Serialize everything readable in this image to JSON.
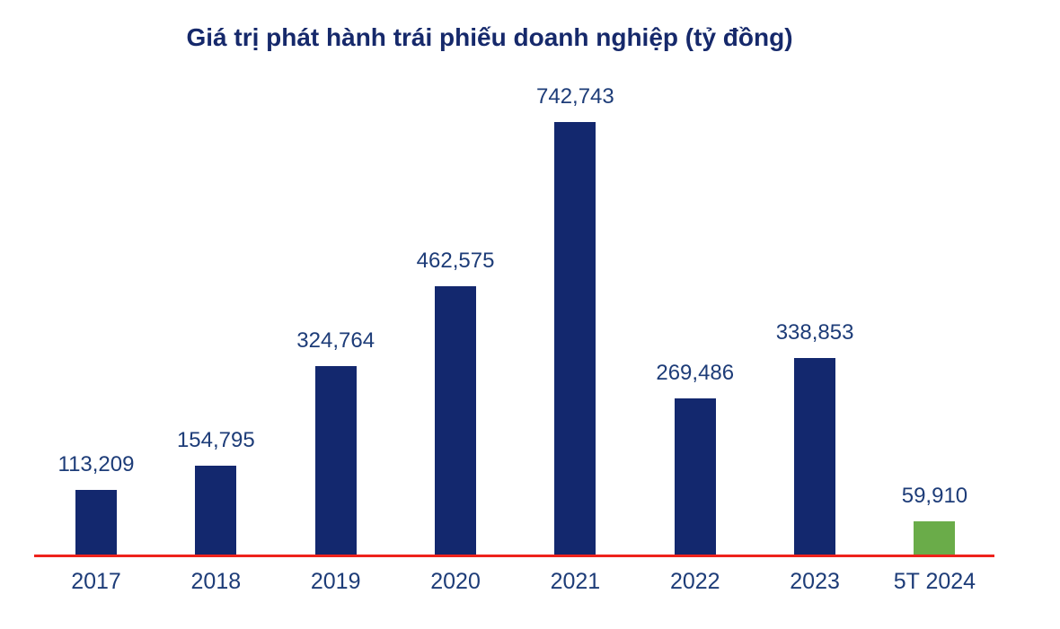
{
  "chart_data": {
    "type": "bar",
    "title": "Giá trị phát hành trái phiếu doanh nghiệp (tỷ đồng)",
    "xlabel": "",
    "ylabel": "",
    "categories": [
      "2017",
      "2018",
      "2019",
      "2020",
      "2021",
      "2022",
      "2023",
      "5T 2024"
    ],
    "values": [
      113209,
      154795,
      324764,
      462575,
      742743,
      269486,
      338853,
      59910
    ],
    "value_labels": [
      "113,209",
      "154,795",
      "324,764",
      "462,575",
      "742,743",
      "269,486",
      "338,853",
      "59,910"
    ],
    "highlight_index": 7,
    "legend": [],
    "grid": "off",
    "ylim": [
      0,
      760000
    ],
    "colors": {
      "bar": "#13286e",
      "highlight_bar": "#6aac49",
      "axis_line": "#ee221c",
      "value_label": "#1d3c78",
      "tick_label": "#1d3c78",
      "title": "#16296b",
      "background": "#ffffff"
    }
  }
}
